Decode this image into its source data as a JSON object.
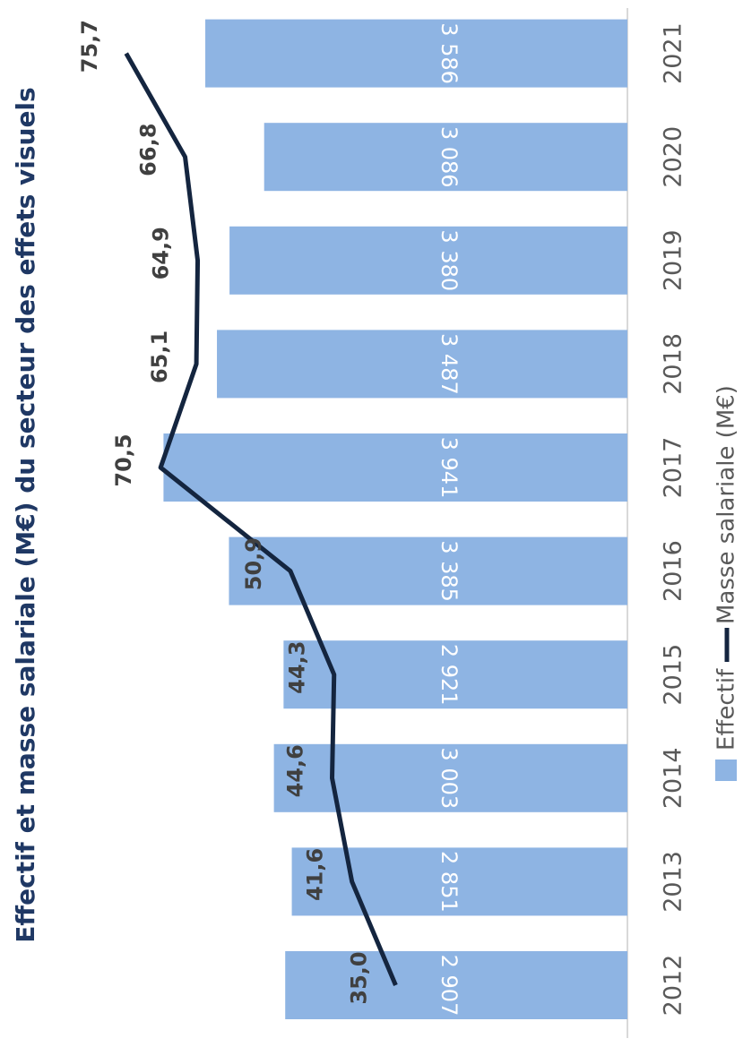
{
  "chart_data": {
    "type": "bar_line",
    "title": "Effectif et masse salariale (M€) du secteur des effets visuels",
    "categories": [
      "2012",
      "2013",
      "2014",
      "2015",
      "2016",
      "2017",
      "2018",
      "2019",
      "2020",
      "2021"
    ],
    "series": [
      {
        "name": "Effectif",
        "type": "bar",
        "color": "#8eb4e3",
        "values": [
          2907,
          2851,
          3003,
          2921,
          3385,
          3941,
          3487,
          3380,
          3086,
          3586
        ],
        "value_labels": [
          "2 907",
          "2 851",
          "3 003",
          "2 921",
          "3 385",
          "3 941",
          "3 487",
          "3 380",
          "3 086",
          "3 586"
        ]
      },
      {
        "name": "Masse salariale (M€)",
        "type": "line",
        "axis": "y2",
        "color": "#14253f",
        "values": [
          35.0,
          41.6,
          44.6,
          44.3,
          50.9,
          70.5,
          65.1,
          64.9,
          66.8,
          75.7
        ],
        "value_labels": [
          "35,0",
          "41,6",
          "44,6",
          "44,3",
          "50,9",
          "70,5",
          "65,1",
          "64,9",
          "66,8",
          "75,7"
        ]
      }
    ],
    "ylim": [
      0,
      4500
    ],
    "y2lim": [
      0,
      80
    ]
  }
}
